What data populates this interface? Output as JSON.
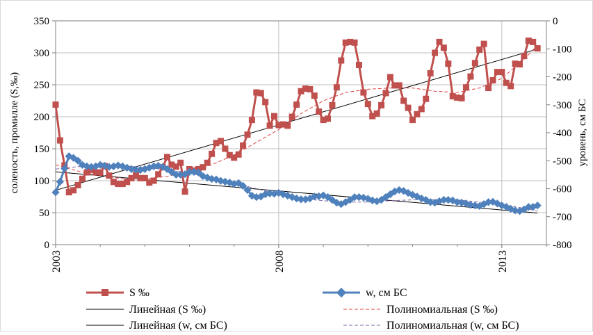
{
  "colors": {
    "s_series": "#c0504d",
    "w_series": "#4f81bd",
    "s_poly": "#e04040",
    "w_poly": "#8064a2",
    "trend": "#000000",
    "grid": "#bfbfbf"
  },
  "chart_data": {
    "type": "line",
    "title": "",
    "xlabel": "",
    "ylabel": "соленость, промилле (S,‰)",
    "y2label": "уровень, см БС",
    "xlim": [
      2003,
      2014
    ],
    "xticks": [
      "2003",
      "2008",
      "2013"
    ],
    "ylim": [
      0,
      350
    ],
    "yticks": [
      "0",
      "50",
      "100",
      "150",
      "200",
      "250",
      "300",
      "350"
    ],
    "y2lim": [
      -800,
      0
    ],
    "y2ticks": [
      "-800",
      "-700",
      "-600",
      "-500",
      "-400",
      "-300",
      "-200",
      "-100",
      "0"
    ],
    "grid": true,
    "legend_placement": "bottom",
    "legend": {
      "s": "S ‰",
      "w": "w, см БС",
      "lin_s": "Линейная (S ‰)",
      "poly_s": "Полиномиальная (S ‰)",
      "lin_w": "Линейная (w, см БС)",
      "poly_w": "Полиномиальная (w, см БС)"
    },
    "series": [
      {
        "name": "S ‰",
        "axis": "left",
        "style": "line-square-markers",
        "x": [
          2003.0,
          2003.1,
          2003.2,
          2003.3,
          2003.4,
          2003.5,
          2003.6,
          2003.7,
          2003.8,
          2003.9,
          2004.0,
          2004.1,
          2004.2,
          2004.3,
          2004.4,
          2004.5,
          2004.6,
          2004.7,
          2004.8,
          2004.9,
          2005.0,
          2005.1,
          2005.2,
          2005.3,
          2005.4,
          2005.5,
          2005.6,
          2005.7,
          2005.8,
          2005.9,
          2006.0,
          2006.1,
          2006.2,
          2006.3,
          2006.4,
          2006.5,
          2006.6,
          2006.7,
          2006.8,
          2006.9,
          2007.0,
          2007.1,
          2007.2,
          2007.3,
          2007.4,
          2007.5,
          2007.6,
          2007.7,
          2007.8,
          2007.9,
          2008.0,
          2008.1,
          2008.2,
          2008.3,
          2008.4,
          2008.5,
          2008.6,
          2008.7,
          2008.8,
          2008.9,
          2009.0,
          2009.1,
          2009.2,
          2009.3,
          2009.4,
          2009.5,
          2009.6,
          2009.7,
          2009.8,
          2009.9,
          2010.0,
          2010.1,
          2010.2,
          2010.3,
          2010.4,
          2010.5,
          2010.6,
          2010.7,
          2010.8,
          2010.9,
          2011.0,
          2011.1,
          2011.2,
          2011.3,
          2011.4,
          2011.5,
          2011.6,
          2011.7,
          2011.8,
          2011.9,
          2012.0,
          2012.1,
          2012.2,
          2012.3,
          2012.4,
          2012.5,
          2012.6,
          2012.7,
          2012.8,
          2012.9,
          2013.0,
          2013.1,
          2013.2,
          2013.3,
          2013.4,
          2013.5,
          2013.6,
          2013.7,
          2013.8
        ],
        "values": [
          219,
          163,
          124,
          82,
          85,
          93,
          103,
          113,
          117,
          113,
          113,
          123,
          108,
          98,
          95,
          95,
          98,
          104,
          109,
          104,
          104,
          97,
          100,
          110,
          121,
          137,
          125,
          122,
          128,
          83,
          118,
          116,
          118,
          121,
          128,
          142,
          159,
          162,
          150,
          140,
          136,
          141,
          155,
          172,
          195,
          238,
          237,
          223,
          186,
          201,
          187,
          188,
          186,
          200,
          219,
          240,
          244,
          243,
          233,
          208,
          195,
          197,
          218,
          246,
          288,
          316,
          317,
          316,
          281,
          238,
          220,
          201,
          205,
          218,
          237,
          262,
          249,
          249,
          225,
          214,
          195,
          204,
          212,
          228,
          268,
          300,
          317,
          308,
          283,
          232,
          230,
          229,
          246,
          263,
          284,
          305,
          314,
          245,
          257,
          270,
          270,
          253,
          248,
          283,
          282,
          295,
          319,
          317,
          307
        ]
      },
      {
        "name": "w, см БС",
        "axis": "right",
        "style": "line-diamond-markers",
        "x": [
          2003.0,
          2003.1,
          2003.2,
          2003.3,
          2003.4,
          2003.5,
          2003.6,
          2003.7,
          2003.8,
          2003.9,
          2004.0,
          2004.1,
          2004.2,
          2004.3,
          2004.4,
          2004.5,
          2004.6,
          2004.7,
          2004.8,
          2004.9,
          2005.0,
          2005.1,
          2005.2,
          2005.3,
          2005.4,
          2005.5,
          2005.6,
          2005.7,
          2005.8,
          2005.9,
          2006.0,
          2006.1,
          2006.2,
          2006.3,
          2006.4,
          2006.5,
          2006.6,
          2006.7,
          2006.8,
          2006.9,
          2007.0,
          2007.1,
          2007.2,
          2007.3,
          2007.4,
          2007.5,
          2007.6,
          2007.7,
          2007.8,
          2007.9,
          2008.0,
          2008.1,
          2008.2,
          2008.3,
          2008.4,
          2008.5,
          2008.6,
          2008.7,
          2008.8,
          2008.9,
          2009.0,
          2009.1,
          2009.2,
          2009.3,
          2009.4,
          2009.5,
          2009.6,
          2009.7,
          2009.8,
          2009.9,
          2010.0,
          2010.1,
          2010.2,
          2010.3,
          2010.4,
          2010.5,
          2010.6,
          2010.7,
          2010.8,
          2010.9,
          2011.0,
          2011.1,
          2011.2,
          2011.3,
          2011.4,
          2011.5,
          2011.6,
          2011.7,
          2011.8,
          2011.9,
          2012.0,
          2012.1,
          2012.2,
          2012.3,
          2012.4,
          2012.5,
          2012.6,
          2012.7,
          2012.8,
          2012.9,
          2013.0,
          2013.1,
          2013.2,
          2013.3,
          2013.4,
          2013.5,
          2013.6,
          2013.7,
          2013.8
        ],
        "values": [
          -613,
          -575,
          -528,
          -484,
          -490,
          -500,
          -515,
          -520,
          -522,
          -520,
          -515,
          -518,
          -522,
          -520,
          -517,
          -520,
          -525,
          -530,
          -532,
          -533,
          -530,
          -525,
          -520,
          -518,
          -522,
          -530,
          -540,
          -550,
          -550,
          -548,
          -540,
          -540,
          -542,
          -555,
          -560,
          -565,
          -567,
          -572,
          -575,
          -578,
          -583,
          -580,
          -590,
          -605,
          -625,
          -630,
          -628,
          -620,
          -617,
          -618,
          -615,
          -620,
          -625,
          -630,
          -635,
          -638,
          -638,
          -635,
          -628,
          -627,
          -624,
          -630,
          -640,
          -650,
          -655,
          -648,
          -640,
          -630,
          -630,
          -632,
          -636,
          -642,
          -645,
          -640,
          -630,
          -620,
          -610,
          -605,
          -608,
          -615,
          -622,
          -628,
          -635,
          -640,
          -648,
          -650,
          -645,
          -640,
          -640,
          -642,
          -648,
          -650,
          -653,
          -658,
          -660,
          -662,
          -655,
          -648,
          -647,
          -653,
          -660,
          -665,
          -672,
          -678,
          -680,
          -674,
          -665,
          -665,
          -660
        ]
      }
    ],
    "trendlines": [
      {
        "name": "Линейная (S ‰)",
        "axis": "left",
        "x": [
          2003.0,
          2013.8
        ],
        "values": [
          85,
          306
        ]
      },
      {
        "name": "Линейная (w, см БС)",
        "axis": "right",
        "x": [
          2003.0,
          2013.8
        ],
        "values": [
          -540,
          -687
        ]
      },
      {
        "name": "Полиномиальная (S ‰)",
        "axis": "left",
        "x": [
          2003.0,
          2003.5,
          2004.0,
          2004.5,
          2005.0,
          2005.5,
          2006.0,
          2006.5,
          2007.0,
          2007.5,
          2008.0,
          2008.5,
          2009.0,
          2009.5,
          2010.0,
          2010.5,
          2011.0,
          2011.5,
          2012.0,
          2012.5,
          2013.0,
          2013.5,
          2013.8
        ],
        "values": [
          125,
          115,
          108,
          103,
          103,
          107,
          114,
          125,
          140,
          160,
          180,
          205,
          225,
          238,
          243,
          245,
          245,
          240,
          238,
          245,
          260,
          290,
          312
        ]
      },
      {
        "name": "Полиномиальная (w, см БС)",
        "axis": "right",
        "x": [
          2003.0,
          2003.5,
          2004.0,
          2004.5,
          2005.0,
          2005.5,
          2006.0,
          2006.5,
          2007.0,
          2007.5,
          2008.0,
          2008.5,
          2009.0,
          2009.5,
          2010.0,
          2010.5,
          2011.0,
          2011.5,
          2012.0,
          2012.5,
          2013.0,
          2013.5,
          2013.8
        ],
        "values": [
          -530,
          -521,
          -516,
          -518,
          -524,
          -532,
          -545,
          -560,
          -580,
          -600,
          -620,
          -635,
          -643,
          -648,
          -648,
          -643,
          -640,
          -638,
          -640,
          -648,
          -657,
          -670,
          -680
        ]
      }
    ]
  }
}
